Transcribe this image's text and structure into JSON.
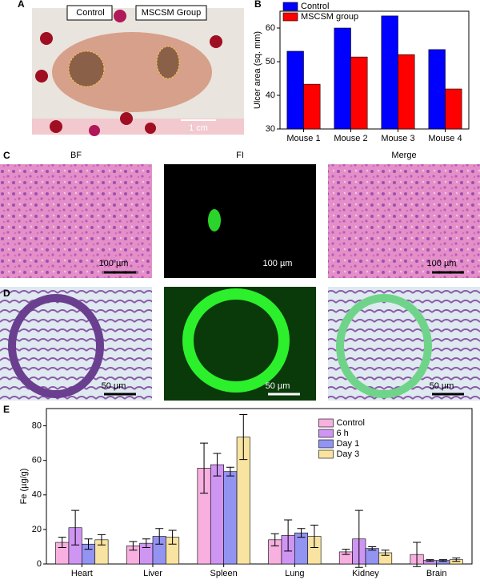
{
  "figure": {
    "panel_labels": [
      "A",
      "B",
      "C",
      "D",
      "E"
    ],
    "photo_labels": [
      "Control",
      "MSCSM Group"
    ],
    "photo_scale": "1 cm",
    "column_titles": [
      "BF",
      "FI",
      "Merge"
    ],
    "scale_bars_c": [
      "100 µm",
      "100 µm",
      "100 µm"
    ],
    "scale_bars_d": [
      "50 µm",
      "50 µm",
      "50 µm"
    ]
  },
  "chart_data": [
    {
      "type": "bar",
      "y_label": "Ulcer area (sq. mm)",
      "categories": [
        "Mouse 1",
        "Mouse 2",
        "Mouse 3",
        "Mouse 4"
      ],
      "series": [
        {
          "name": "Control",
          "color": "#0000ff",
          "values": [
            53.1,
            60.0,
            63.6,
            53.6
          ]
        },
        {
          "name": "MSCSM group",
          "color": "#ff0000",
          "values": [
            43.3,
            51.4,
            52.1,
            41.9
          ]
        }
      ],
      "ylim": [
        30,
        65
      ],
      "yticks": [
        30,
        40,
        50,
        60
      ],
      "legend": "upper left"
    },
    {
      "type": "bar",
      "y_label": "Fe (µg/g)",
      "categories": [
        "Heart",
        "Liver",
        "Spleen",
        "Lung",
        "Kidney",
        "Brain"
      ],
      "series": [
        {
          "name": "Control",
          "color": "#f7b0df",
          "values": [
            12.5,
            10.5,
            55.5,
            14,
            7,
            5.5
          ],
          "errors": [
            3,
            2.5,
            14.5,
            3.5,
            1.5,
            7
          ]
        },
        {
          "name": "6 h",
          "color": "#cf95f2",
          "values": [
            21,
            12,
            57.5,
            16.5,
            14.5,
            2
          ],
          "errors": [
            10,
            2.5,
            6.5,
            9,
            16.5,
            0.5
          ]
        },
        {
          "name": "Day 1",
          "color": "#9393f2",
          "values": [
            11.5,
            16,
            53.5,
            18,
            9,
            2
          ],
          "errors": [
            3,
            4.5,
            2.5,
            2.5,
            1,
            0.5
          ]
        },
        {
          "name": "Day 3",
          "color": "#f8e3a0",
          "values": [
            14,
            15.5,
            73.5,
            16,
            6.5,
            2.5
          ],
          "errors": [
            3,
            4,
            13,
            6.5,
            1.5,
            1
          ]
        }
      ],
      "ylim": [
        0,
        90
      ],
      "yticks": [
        0,
        20,
        40,
        60,
        80
      ],
      "legend": "upper center"
    }
  ]
}
